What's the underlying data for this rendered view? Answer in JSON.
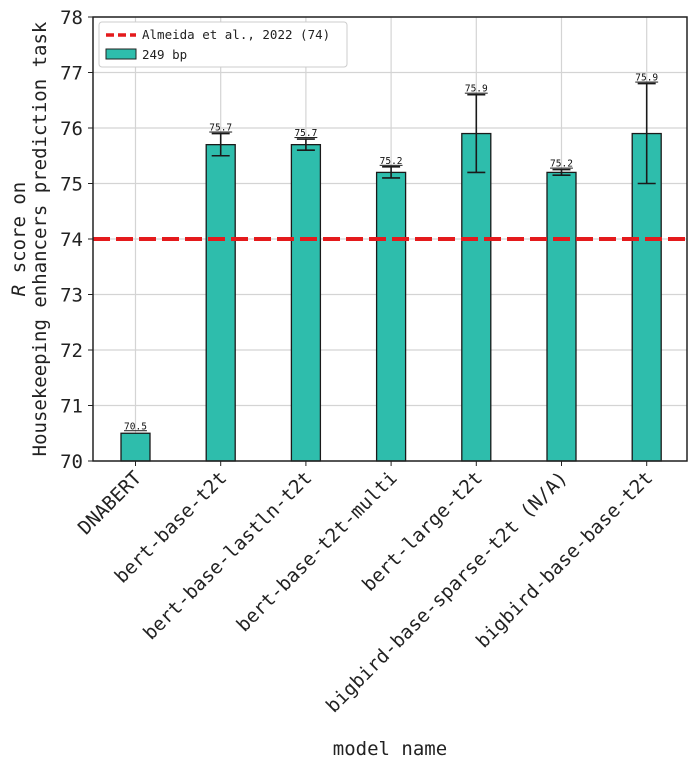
{
  "chart_data": {
    "type": "bar",
    "title": "",
    "xlabel": "model name",
    "ylabel_line1": "R score on",
    "ylabel_italic_part": "R",
    "ylabel_line2": "Housekeeping enhancers prediction task",
    "ylim": [
      70,
      78
    ],
    "yticks": [
      "70",
      "71",
      "72",
      "73",
      "74",
      "75",
      "76",
      "77",
      "78"
    ],
    "grid": true,
    "legend_placement": "top-left",
    "categories": [
      "DNABERT",
      "bert-base-t2t",
      "bert-base-lastln-t2t",
      "bert-base-t2t-multi",
      "bert-large-t2t",
      "bigbird-base-sparse-t2t (N/A)",
      "bigbird-base-base-t2t"
    ],
    "series": [
      {
        "name": "249 bp",
        "color": "#2ebdac",
        "values": [
          70.5,
          75.7,
          75.7,
          75.2,
          75.9,
          75.2,
          75.9
        ],
        "errors": [
          null,
          0.2,
          0.1,
          0.1,
          0.7,
          0.05,
          0.9
        ],
        "data_labels": [
          "70.5",
          "75.7",
          "75.7",
          "75.2",
          "75.9",
          "75.2",
          "75.9"
        ]
      }
    ],
    "reference_line": {
      "label": "Almeida et al., 2022 (74)",
      "value": 74,
      "color": "#e41a1c",
      "style": "dashed"
    }
  }
}
